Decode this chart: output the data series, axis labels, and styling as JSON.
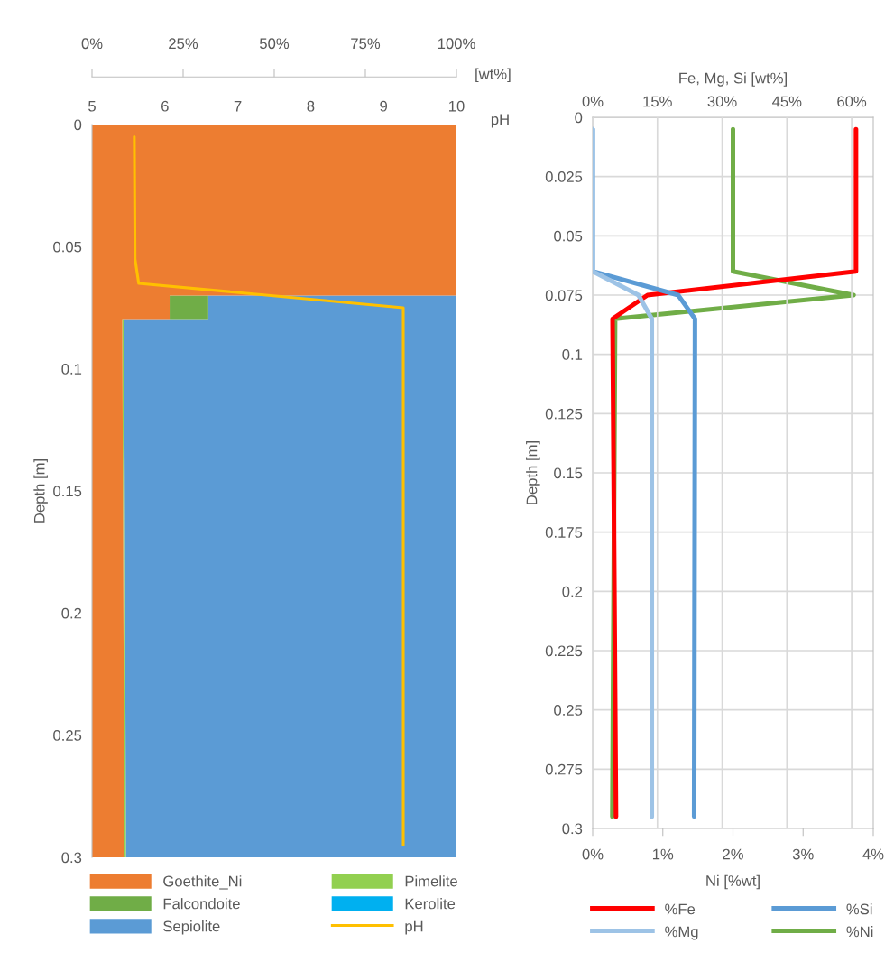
{
  "chart_data": [
    {
      "type": "area",
      "orientation": "horizontal",
      "stacked": true,
      "ylabel": "Depth [m]",
      "xlabel": "[wt%]",
      "x2label": "pH",
      "ylim": [
        0.3,
        0
      ],
      "yticks": [
        0,
        0.05,
        0.1,
        0.15,
        0.2,
        0.25,
        0.3
      ],
      "xlim": [
        0,
        100
      ],
      "xticks": [
        {
          "value": 0,
          "label": "0%"
        },
        {
          "value": 25,
          "label": "25%"
        },
        {
          "value": 50,
          "label": "50%"
        },
        {
          "value": 75,
          "label": "75%"
        },
        {
          "value": 100,
          "label": "100%"
        }
      ],
      "x2lim": [
        5,
        10
      ],
      "x2ticks": [
        5,
        6,
        7,
        8,
        9,
        10
      ],
      "x": [
        0,
        0.07,
        0.07,
        0.08,
        0.08,
        0.3
      ],
      "legend": "bottom",
      "series": [
        {
          "name": "Goethite_Ni",
          "color": "#ed7d31",
          "values": [
            100,
            100,
            21.3,
            21.3,
            8.3,
            8.9
          ]
        },
        {
          "name": "Pimelite",
          "color": "#92d050",
          "values": [
            0,
            0,
            0,
            0,
            0.5,
            0.4
          ]
        },
        {
          "name": "Falcondoite",
          "color": "#70ad47",
          "values": [
            0,
            0,
            10.6,
            10.6,
            0,
            0
          ]
        },
        {
          "name": "Kerolite",
          "color": "#00b0f0",
          "values": [
            null,
            null,
            null,
            null,
            null,
            null
          ]
        },
        {
          "name": "Sepiolite",
          "color": "#5b9bd5",
          "values": [
            null,
            null,
            68.1,
            68.1,
            91.2,
            90.7
          ]
        },
        {
          "name": "pH",
          "type": "line",
          "axis": "x2",
          "color": "#ffc000",
          "x": [
            0.005,
            0.055,
            0.065,
            0.075,
            0.295
          ],
          "values": [
            5.58,
            5.59,
            5.64,
            9.27,
            9.27
          ]
        }
      ]
    },
    {
      "type": "line",
      "orientation": "horizontal",
      "ylabel": "Depth [m]",
      "xlabel": "Ni [%wt]",
      "x2label": "Fe, Mg, Si [wt%]",
      "ylim": [
        0.3,
        0
      ],
      "yticks": [
        0,
        0.025,
        0.05,
        0.075,
        0.1,
        0.125,
        0.15,
        0.175,
        0.2,
        0.225,
        0.25,
        0.275,
        0.3
      ],
      "xlim": [
        0,
        4
      ],
      "xticks": [
        {
          "value": 0,
          "label": "0%"
        },
        {
          "value": 1,
          "label": "1%"
        },
        {
          "value": 2,
          "label": "2%"
        },
        {
          "value": 3,
          "label": "3%"
        },
        {
          "value": 4,
          "label": "4%"
        }
      ],
      "x2lim": [
        0,
        65
      ],
      "x2ticks": [
        {
          "value": 0,
          "label": "0%"
        },
        {
          "value": 15,
          "label": "15%"
        },
        {
          "value": 30,
          "label": "30%"
        },
        {
          "value": 45,
          "label": "45%"
        },
        {
          "value": 60,
          "label": "60%"
        }
      ],
      "x": [
        0.005,
        0.065,
        0.075,
        0.085,
        0.295
      ],
      "grid": true,
      "legend": "bottom",
      "series": [
        {
          "name": "%Fe",
          "axis": "x2",
          "color": "#ff0000",
          "values": [
            61,
            61,
            12.7,
            4.6,
            5.4
          ]
        },
        {
          "name": "%Si",
          "axis": "x2",
          "color": "#5b9bd5",
          "values": [
            0,
            0,
            19.8,
            23.7,
            23.5
          ]
        },
        {
          "name": "%Mg",
          "axis": "x2",
          "color": "#9dc3e6",
          "values": [
            0,
            0,
            10.6,
            13.7,
            13.7
          ]
        },
        {
          "name": "%Ni",
          "color": "#70ad47",
          "values": [
            2.0,
            2.0,
            3.72,
            0.32,
            0.28
          ]
        }
      ]
    }
  ]
}
